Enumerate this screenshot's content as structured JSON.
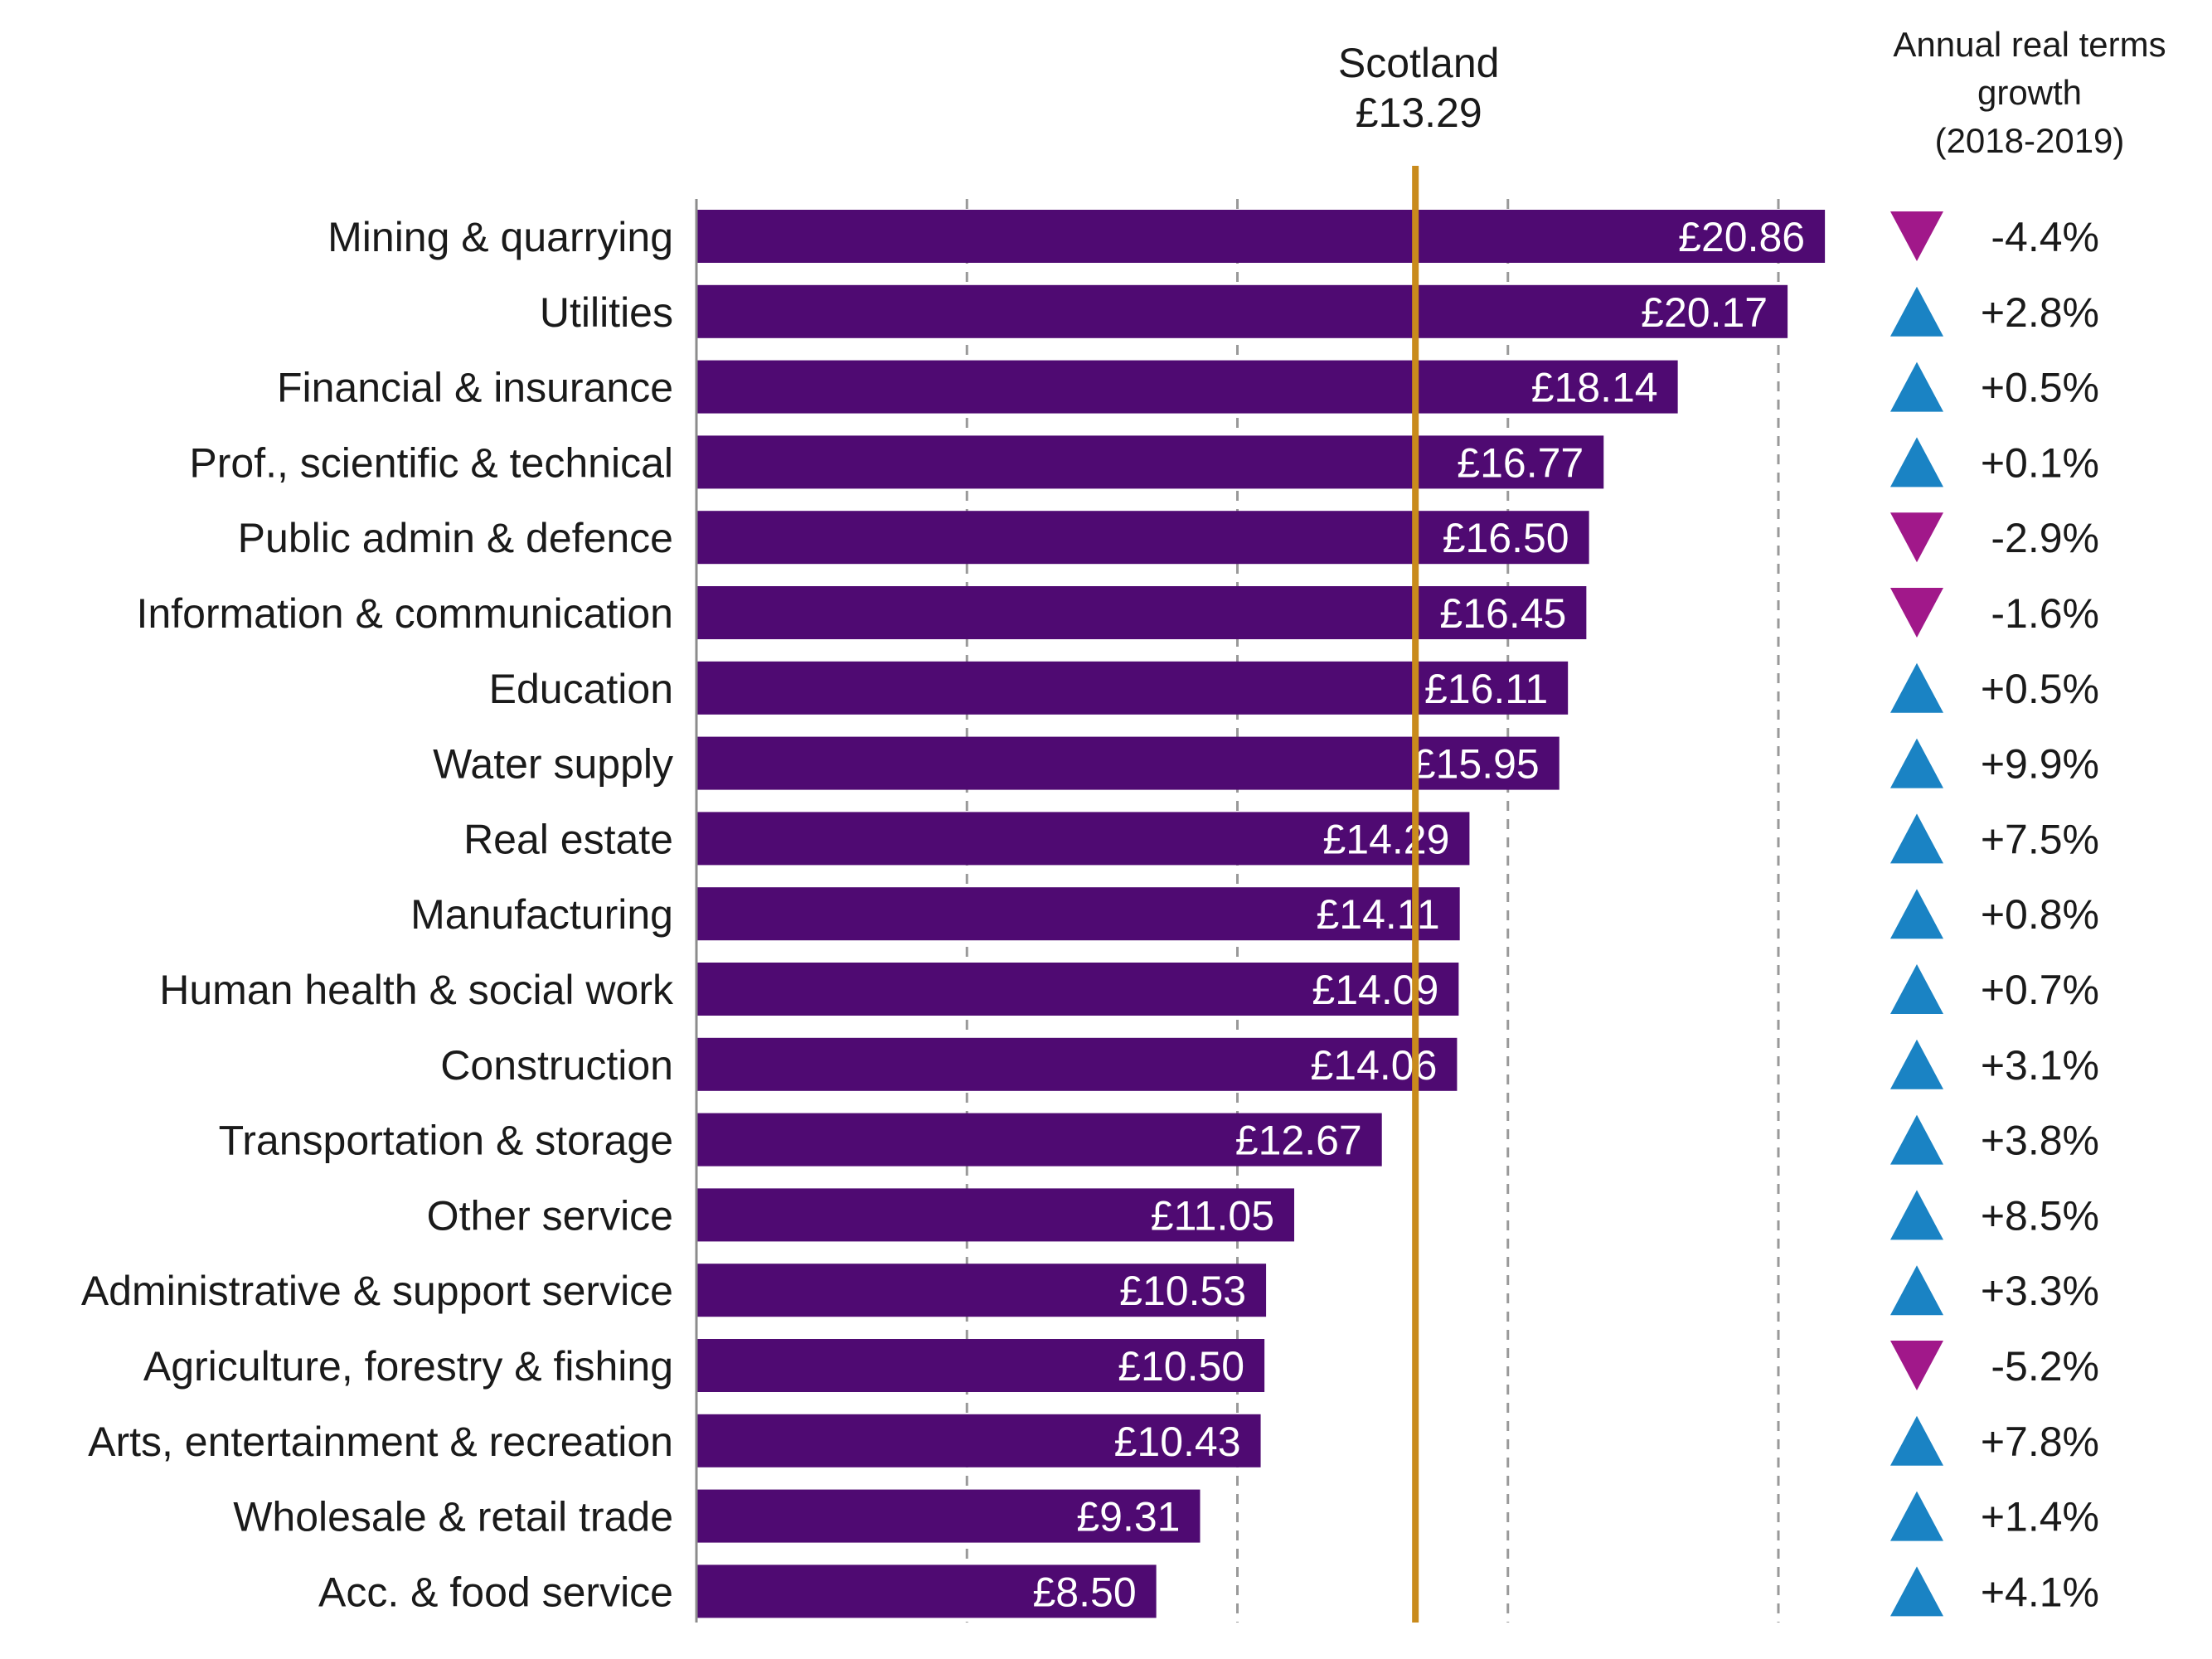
{
  "chart_data": {
    "type": "bar",
    "orientation": "horizontal",
    "categories": [
      "Mining & quarrying",
      "Utilities",
      "Financial & insurance",
      "Prof., scientific & technical",
      "Public admin & defence",
      "Information & communication",
      "Education",
      "Water supply",
      "Real estate",
      "Manufacturing",
      "Human health & social work",
      "Construction",
      "Transportation & storage",
      "Other service",
      "Administrative & support service",
      "Agriculture, forestry & fishing",
      "Arts, entertainment & recreation",
      "Wholesale & retail trade",
      "Acc. & food service"
    ],
    "values": [
      20.86,
      20.17,
      18.14,
      16.77,
      16.5,
      16.45,
      16.11,
      15.95,
      14.29,
      14.11,
      14.09,
      14.06,
      12.67,
      11.05,
      10.53,
      10.5,
      10.43,
      9.31,
      8.5
    ],
    "value_labels": [
      "£20.86",
      "£20.17",
      "£18.14",
      "£16.77",
      "£16.50",
      "£16.45",
      "£16.11",
      "£15.95",
      "£14.29",
      "£14.11",
      "£14.09",
      "£14.06",
      "£12.67",
      "£11.05",
      "£10.53",
      "£10.50",
      "£10.43",
      "£9.31",
      "£8.50"
    ],
    "growth": [
      -4.4,
      2.8,
      0.5,
      0.1,
      -2.9,
      -1.6,
      0.5,
      9.9,
      7.5,
      0.8,
      0.7,
      3.1,
      3.8,
      8.5,
      3.3,
      -5.2,
      7.8,
      1.4,
      4.1
    ],
    "growth_labels": [
      "-4.4%",
      "+2.8%",
      "+0.5%",
      "+0.1%",
      "-2.9%",
      "-1.6%",
      "+0.5%",
      "+9.9%",
      "+7.5%",
      "+0.8%",
      "+0.7%",
      "+3.1%",
      "+3.8%",
      "+8.5%",
      "+3.3%",
      "-5.2%",
      "+7.8%",
      "+1.4%",
      "+4.1%"
    ],
    "growth_header": [
      "Annual real terms",
      "growth",
      "(2018-2019)"
    ],
    "reference_line": {
      "label": "Scotland",
      "value": 13.29,
      "value_label": "£13.29"
    },
    "xlim": [
      0,
      20
    ],
    "gridlines": [
      5,
      10,
      15,
      20
    ],
    "grid": true,
    "colors": {
      "bar": "#4f0a72",
      "reference": "#c98b1c",
      "up": "#1a83c4",
      "down": "#a1188a",
      "grid": "#999999",
      "axis": "#8c8c8c"
    }
  }
}
